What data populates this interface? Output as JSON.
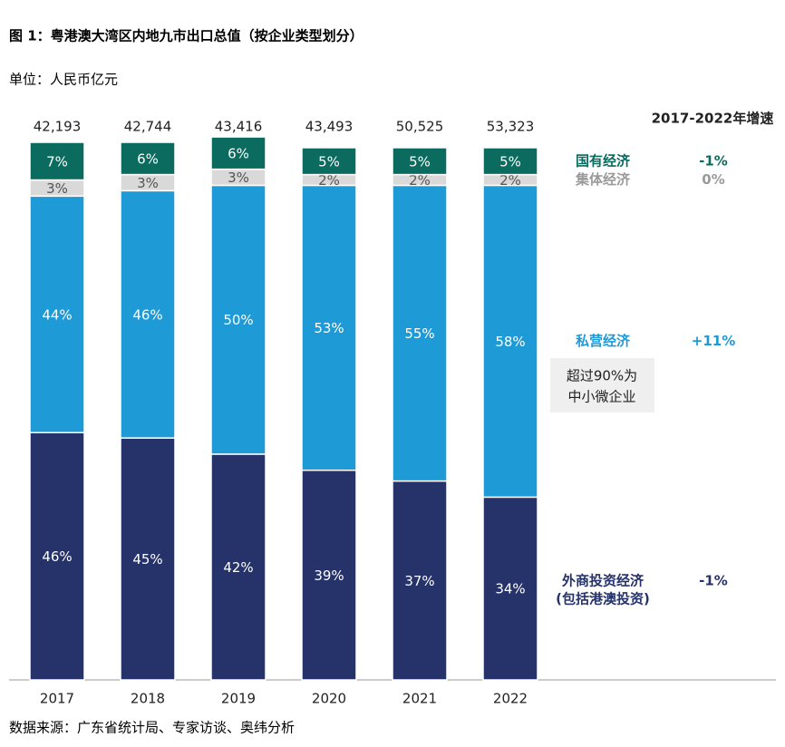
{
  "chart_data": {
    "type": "stacked_bar_100",
    "title": "图 1：粤港澳大湾区内地九市出口总值（按企业类型划分）",
    "subtitle": "单位：人民币亿元",
    "categories": [
      "2017",
      "2018",
      "2019",
      "2020",
      "2021",
      "2022"
    ],
    "totals": [
      "42,193",
      "42,744",
      "43,416",
      "43,493",
      "50,525",
      "53,323"
    ],
    "growth_header": "2017-2022年增速",
    "ylim": [
      0,
      100
    ],
    "series": [
      {
        "name": "外商投资经济",
        "note": "(包括港澳投资)",
        "color": "#26336b",
        "label_color": "#ffffff",
        "growth": "-1%",
        "values": [
          46,
          45,
          42,
          39,
          37,
          34
        ],
        "value_labels": [
          "46%",
          "45%",
          "42%",
          "39%",
          "37%",
          "34%"
        ]
      },
      {
        "name": "私营经济",
        "color": "#1e9bd7",
        "label_color": "#ffffff",
        "growth": "+11%",
        "values": [
          44,
          46,
          50,
          53,
          55,
          58
        ],
        "value_labels": [
          "44%",
          "46%",
          "50%",
          "53%",
          "55%",
          "58%"
        ]
      },
      {
        "name": "集体经济",
        "color": "#d9d9d9",
        "label_color": "#555555",
        "text_color": "#9a9a9a",
        "growth": "0%",
        "values": [
          3,
          3,
          3,
          2,
          2,
          2
        ],
        "value_labels": [
          "3%",
          "3%",
          "3%",
          "2%",
          "2%",
          "2%"
        ]
      },
      {
        "name": "国有经济",
        "color": "#0b6b5e",
        "label_color": "#ffffff",
        "growth": "-1%",
        "values": [
          7,
          6,
          6,
          5,
          5,
          5
        ],
        "value_labels": [
          "7%",
          "6%",
          "6%",
          "5%",
          "5%",
          "5%"
        ]
      }
    ],
    "annotation": [
      "超过90%为",
      "中小微企业"
    ],
    "source": "数据来源：广东省统计局、专家访谈、奥纬分析"
  }
}
